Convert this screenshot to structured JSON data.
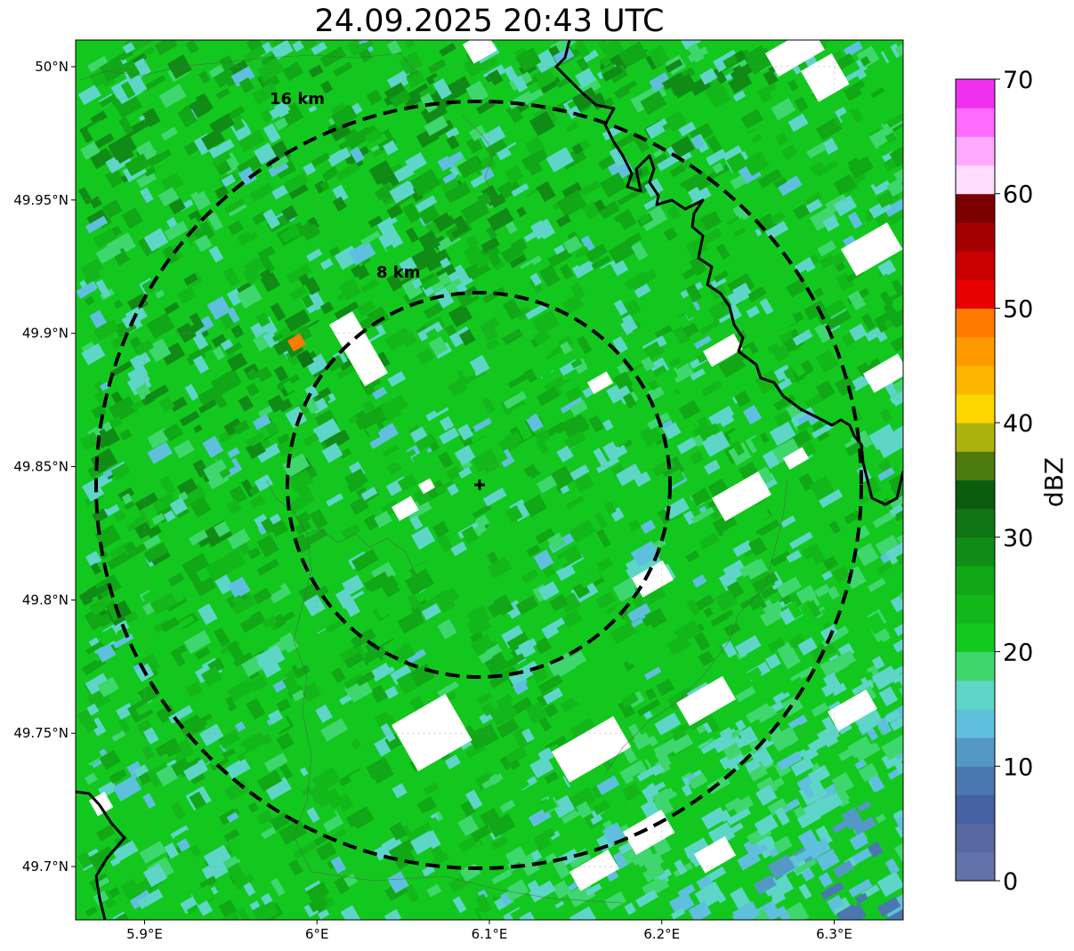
{
  "title": "24.09.2025 20:43 UTC",
  "map": {
    "lon_range": [
      5.86,
      6.34
    ],
    "lat_range": [
      49.68,
      50.01
    ],
    "lon_ticks": [
      {
        "value": 5.9,
        "label": "5.9°E"
      },
      {
        "value": 6.0,
        "label": "6°E"
      },
      {
        "value": 6.1,
        "label": "6.1°E"
      },
      {
        "value": 6.2,
        "label": "6.2°E"
      },
      {
        "value": 6.3,
        "label": "6.3°E"
      }
    ],
    "lat_ticks": [
      {
        "value": 50.0,
        "label": "50°N"
      },
      {
        "value": 49.95,
        "label": "49.95°N"
      },
      {
        "value": 49.9,
        "label": "49.9°N"
      },
      {
        "value": 49.85,
        "label": "49.85°N"
      },
      {
        "value": 49.8,
        "label": "49.8°N"
      },
      {
        "value": 49.75,
        "label": "49.75°N"
      },
      {
        "value": 49.7,
        "label": "49.7°N"
      }
    ],
    "radar_site": {
      "lon": 6.096,
      "lat": 49.843
    },
    "range_rings": [
      {
        "radius_km": 8,
        "label": "8 km"
      },
      {
        "radius_km": 16,
        "label": "16 km"
      }
    ],
    "background_color": "#12c81e"
  },
  "colorbar": {
    "label": "dBZ",
    "min": 0,
    "max": 70,
    "tick_labels": [
      "0",
      "10",
      "20",
      "30",
      "40",
      "50",
      "60",
      "70"
    ],
    "colors": [
      "#6272aa",
      "#56689f",
      "#4560a3",
      "#4a77b0",
      "#5499c5",
      "#5fc0dd",
      "#5ed6c7",
      "#3ed76d",
      "#12c81e",
      "#12b81a",
      "#10a816",
      "#108c16",
      "#0e7414",
      "#0a5c0e",
      "#4d7a0c",
      "#abb20c",
      "#fdd600",
      "#fdb500",
      "#fe9900",
      "#fe7b00",
      "#e80000",
      "#c80000",
      "#a40000",
      "#7a0000",
      "#ffdcff",
      "#ffaaff",
      "#ff6aff",
      "#f030f0"
    ]
  }
}
